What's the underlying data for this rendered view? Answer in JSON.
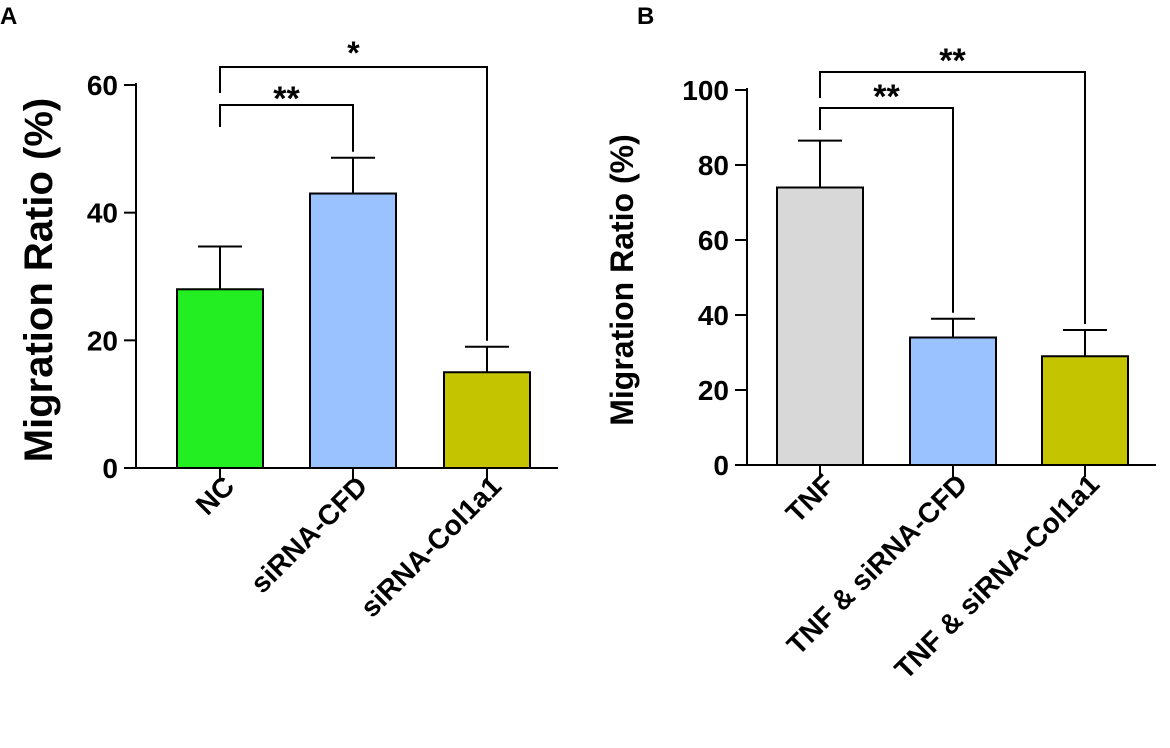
{
  "chart_data": [
    {
      "panel": "A",
      "type": "bar",
      "ylabel": "Migration Ratio (%)",
      "ylim": [
        0,
        60
      ],
      "yticks": [
        0,
        20,
        40,
        60
      ],
      "categories": [
        "NC",
        "siRNA-CFD",
        "siRNA-Col1a1"
      ],
      "values": [
        28,
        43,
        15
      ],
      "errors": [
        6.7,
        5.6,
        4.0
      ],
      "colors": [
        "#22ee22",
        "#99c2ff",
        "#c4c400"
      ],
      "significance": [
        {
          "from": 0,
          "to": 1,
          "label": "**"
        },
        {
          "from": 0,
          "to": 2,
          "label": "*"
        }
      ]
    },
    {
      "panel": "B",
      "type": "bar",
      "ylabel": "Migration Ratio (%)",
      "ylim": [
        0,
        100
      ],
      "yticks": [
        0,
        20,
        40,
        60,
        80,
        100
      ],
      "categories": [
        "TNF",
        "TNF & siRNA-CFD",
        "TNF & siRNA-Col1a1"
      ],
      "values": [
        74,
        34,
        29
      ],
      "errors": [
        12.5,
        5.0,
        7.0
      ],
      "colors": [
        "#d8d8d8",
        "#99c2ff",
        "#c4c400"
      ],
      "significance": [
        {
          "from": 0,
          "to": 1,
          "label": "**"
        },
        {
          "from": 0,
          "to": 2,
          "label": "**"
        }
      ]
    }
  ]
}
